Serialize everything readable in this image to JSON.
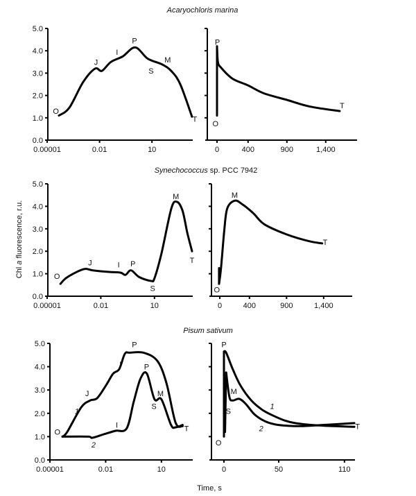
{
  "ylabel_prefix": "Chl ",
  "ylabel_italic": "a",
  "ylabel_suffix": " fluorescence, r.u.",
  "xlabel": "Time, s",
  "chart_data": [
    {
      "type": "line",
      "row_title_italic": "Acaryochloris marina",
      "row_title_plain": "",
      "x_scale": "log",
      "xlim_log10": [
        -5,
        3.3
      ],
      "ylim": [
        0,
        5
      ],
      "x_ticks": [
        {
          "log10": -5,
          "label": "0.00001"
        },
        {
          "log10": -2,
          "label": "0.01"
        },
        {
          "log10": 1,
          "label": "10"
        }
      ],
      "y_ticks": [
        "0.0",
        "1.0",
        "2.0",
        "3.0",
        "4.0",
        "5.0"
      ],
      "series": [
        {
          "points_log10x_y": [
            [
              -4.33,
              1.1
            ],
            [
              -3.73,
              1.45
            ],
            [
              -2.94,
              2.6
            ],
            [
              -2.26,
              3.2
            ],
            [
              -1.87,
              3.1
            ],
            [
              -1.35,
              3.5
            ],
            [
              -0.67,
              3.75
            ],
            [
              0.04,
              4.15
            ],
            [
              0.75,
              3.65
            ],
            [
              1.55,
              3.4
            ],
            [
              2.1,
              3.1
            ],
            [
              2.62,
              2.5
            ],
            [
              3.29,
              1.05
            ]
          ]
        }
      ],
      "annotations": [
        {
          "text": "O",
          "x": -4.5,
          "y": 1.3
        },
        {
          "text": "J",
          "x": -2.2,
          "y": 3.5
        },
        {
          "text": "I",
          "x": -1.0,
          "y": 3.95
        },
        {
          "text": "P",
          "x": 0.0,
          "y": 4.45
        },
        {
          "text": "S",
          "x": 0.95,
          "y": 3.1
        },
        {
          "text": "M",
          "x": 1.9,
          "y": 3.6
        },
        {
          "text": "T",
          "x": 3.45,
          "y": 0.95
        }
      ]
    },
    {
      "type": "line",
      "x_scale": "linear",
      "xlim": [
        -40,
        1800
      ],
      "ylim": [
        0,
        5
      ],
      "x_ticks": [
        {
          "value": 0,
          "label": "0"
        },
        {
          "value": 400,
          "label": "400"
        },
        {
          "value": 900,
          "label": "900"
        },
        {
          "value": 1400,
          "label": "1,400"
        }
      ],
      "y_ticks_unlabeled": [
        1,
        2,
        3,
        4,
        5
      ],
      "series": [
        {
          "points": [
            [
              0,
              1.1
            ],
            [
              0,
              4.2
            ],
            [
              12,
              3.5
            ],
            [
              50,
              3.25
            ],
            [
              200,
              2.75
            ],
            [
              400,
              2.45
            ],
            [
              600,
              2.1
            ],
            [
              900,
              1.8
            ],
            [
              1200,
              1.5
            ],
            [
              1580,
              1.3
            ]
          ]
        }
      ],
      "annotations": [
        {
          "text": "P",
          "x": 5,
          "y": 4.4
        },
        {
          "text": "O",
          "x": -20,
          "y": 0.75
        },
        {
          "text": "T",
          "x": 1610,
          "y": 1.55
        }
      ]
    },
    {
      "type": "line",
      "row_title_italic": "Synechococcus",
      "row_title_plain": " sp. PCC 7942",
      "x_scale": "log",
      "xlim_log10": [
        -5,
        3.2
      ],
      "ylim": [
        0,
        5
      ],
      "x_ticks": [
        {
          "log10": -5,
          "label": "0.00001"
        },
        {
          "log10": -2,
          "label": "0.01"
        },
        {
          "log10": 1,
          "label": "10"
        }
      ],
      "y_ticks": [
        "0.0",
        "1.0",
        "2.0",
        "3.0",
        "4.0",
        "5.0"
      ],
      "series": [
        {
          "points_log10x_y": [
            [
              -4.26,
              0.55
            ],
            [
              -3.87,
              0.85
            ],
            [
              -2.97,
              1.2
            ],
            [
              -2.45,
              1.15
            ],
            [
              -1.52,
              1.08
            ],
            [
              -0.9,
              1.05
            ],
            [
              -0.62,
              0.95
            ],
            [
              -0.31,
              1.15
            ],
            [
              0.15,
              0.85
            ],
            [
              0.81,
              0.68
            ],
            [
              1.0,
              0.8
            ],
            [
              1.39,
              1.9
            ],
            [
              1.94,
              3.9
            ],
            [
              2.25,
              4.2
            ],
            [
              2.57,
              3.8
            ],
            [
              2.84,
              2.8
            ],
            [
              3.1,
              2.0
            ]
          ]
        }
      ],
      "annotations": [
        {
          "text": "O",
          "x": -4.45,
          "y": 0.9
        },
        {
          "text": "J",
          "x": -2.6,
          "y": 1.5
        },
        {
          "text": "I",
          "x": -1.0,
          "y": 1.4
        },
        {
          "text": "P",
          "x": -0.2,
          "y": 1.45
        },
        {
          "text": "S",
          "x": 0.9,
          "y": 0.35
        },
        {
          "text": "M",
          "x": 2.2,
          "y": 4.45
        },
        {
          "text": "T",
          "x": 3.1,
          "y": 1.6
        }
      ]
    },
    {
      "type": "line",
      "x_scale": "linear",
      "xlim": [
        -40,
        1800
      ],
      "ylim": [
        0,
        5
      ],
      "x_ticks": [
        {
          "value": 0,
          "label": "0"
        },
        {
          "value": 400,
          "label": "400"
        },
        {
          "value": 900,
          "label": "900"
        },
        {
          "value": 1400,
          "label": "1,400"
        }
      ],
      "y_ticks_unlabeled": [
        1,
        2,
        3,
        4,
        5
      ],
      "series": [
        {
          "points": [
            [
              -10,
              1.25
            ],
            [
              -10,
              0.55
            ],
            [
              15,
              1.2
            ],
            [
              60,
              2.9
            ],
            [
              100,
              3.9
            ],
            [
              200,
              4.25
            ],
            [
              300,
              4.1
            ],
            [
              450,
              3.7
            ],
            [
              600,
              3.2
            ],
            [
              900,
              2.75
            ],
            [
              1200,
              2.45
            ],
            [
              1380,
              2.35
            ]
          ]
        }
      ],
      "annotations": [
        {
          "text": "M",
          "x": 200,
          "y": 4.5
        },
        {
          "text": "O",
          "x": -40,
          "y": 0.3
        },
        {
          "text": "T",
          "x": 1420,
          "y": 2.4
        }
      ]
    },
    {
      "type": "line",
      "row_title_italic": "Pisum sativum",
      "row_title_plain": "",
      "x_scale": "log",
      "xlim_log10": [
        -5,
        2.6
      ],
      "ylim": [
        0,
        5
      ],
      "x_ticks": [
        {
          "log10": -5,
          "label": "0.00001"
        },
        {
          "log10": -2,
          "label": "0.01"
        },
        {
          "log10": 1,
          "label": "10"
        }
      ],
      "y_ticks": [
        "0.0",
        "1.0",
        "2.0",
        "3.0",
        "4.0",
        "5.0"
      ],
      "series": [
        {
          "name": "1",
          "points_log10x_y": [
            [
              -4.33,
              1.0
            ],
            [
              -4.07,
              1.2
            ],
            [
              -3.32,
              2.25
            ],
            [
              -2.84,
              2.55
            ],
            [
              -2.46,
              2.65
            ],
            [
              -1.98,
              3.2
            ],
            [
              -1.6,
              3.7
            ],
            [
              -1.27,
              3.9
            ],
            [
              -0.97,
              4.55
            ],
            [
              -0.7,
              4.6
            ],
            [
              0.04,
              4.6
            ],
            [
              0.78,
              4.25
            ],
            [
              1.27,
              3.3
            ],
            [
              1.76,
              1.6
            ],
            [
              2.14,
              1.45
            ]
          ]
        },
        {
          "name": "2",
          "points_log10x_y": [
            [
              -4.33,
              1.0
            ],
            [
              -2.95,
              1.0
            ],
            [
              -2.72,
              0.95
            ],
            [
              -2.1,
              1.1
            ],
            [
              -1.47,
              1.25
            ],
            [
              -0.87,
              1.35
            ],
            [
              -0.49,
              2.5
            ],
            [
              -0.12,
              3.5
            ],
            [
              0.22,
              3.7
            ],
            [
              0.63,
              2.6
            ],
            [
              1.0,
              2.6
            ],
            [
              1.52,
              1.5
            ],
            [
              1.76,
              1.4
            ],
            [
              2.14,
              1.5
            ]
          ]
        }
      ],
      "annotations": [
        {
          "text": "O",
          "x": -4.6,
          "y": 1.2
        },
        {
          "text": "J",
          "x": -3.0,
          "y": 2.85
        },
        {
          "text": "1",
          "x": -3.55,
          "y": 2.1,
          "italic": true
        },
        {
          "text": "I",
          "x": -1.2,
          "y": 4.1
        },
        {
          "text": "P",
          "x": -0.45,
          "y": 4.95
        },
        {
          "text": "P",
          "x": 0.2,
          "y": 4.0
        },
        {
          "text": "M",
          "x": 0.95,
          "y": 2.85
        },
        {
          "text": "S",
          "x": 0.6,
          "y": 2.3
        },
        {
          "text": "I",
          "x": -1.4,
          "y": 1.5
        },
        {
          "text": "2",
          "x": -2.65,
          "y": 0.65,
          "italic": true
        },
        {
          "text": "T",
          "x": 2.35,
          "y": 1.35
        }
      ]
    },
    {
      "type": "line",
      "x_scale": "linear",
      "xlim": [
        -10,
        120
      ],
      "ylim": [
        0,
        5
      ],
      "x_ticks": [
        {
          "value": 0,
          "label": "0"
        },
        {
          "value": 50,
          "label": "50"
        },
        {
          "value": 110,
          "label": "110"
        }
      ],
      "y_ticks_unlabeled": [
        1,
        2,
        3,
        4,
        5
      ],
      "series": [
        {
          "name": "1",
          "points": [
            [
              0,
              1.0
            ],
            [
              0,
              4.65
            ],
            [
              2,
              4.6
            ],
            [
              8,
              3.9
            ],
            [
              15,
              3.2
            ],
            [
              25,
              2.55
            ],
            [
              35,
              2.15
            ],
            [
              45,
              1.9
            ],
            [
              55,
              1.7
            ],
            [
              65,
              1.58
            ],
            [
              80,
              1.5
            ],
            [
              100,
              1.45
            ],
            [
              119,
              1.42
            ]
          ]
        },
        {
          "name": "2",
          "points": [
            [
              1,
              1.2
            ],
            [
              2,
              3.75
            ],
            [
              5,
              2.7
            ],
            [
              8,
              2.55
            ],
            [
              14,
              2.62
            ],
            [
              20,
              2.4
            ],
            [
              28,
              1.95
            ],
            [
              38,
              1.65
            ],
            [
              50,
              1.5
            ],
            [
              70,
              1.45
            ],
            [
              90,
              1.5
            ],
            [
              119,
              1.58
            ]
          ]
        }
      ],
      "annotations": [
        {
          "text": "P",
          "x": 0,
          "y": 4.95
        },
        {
          "text": "S",
          "x": 4,
          "y": 2.1
        },
        {
          "text": "M",
          "x": 9,
          "y": 2.95
        },
        {
          "text": "1",
          "x": 44,
          "y": 2.3,
          "italic": true
        },
        {
          "text": "2",
          "x": 34,
          "y": 1.35,
          "italic": true
        },
        {
          "text": "O",
          "x": -5,
          "y": 0.75
        },
        {
          "text": "T",
          "x": 122,
          "y": 1.45
        }
      ]
    }
  ]
}
